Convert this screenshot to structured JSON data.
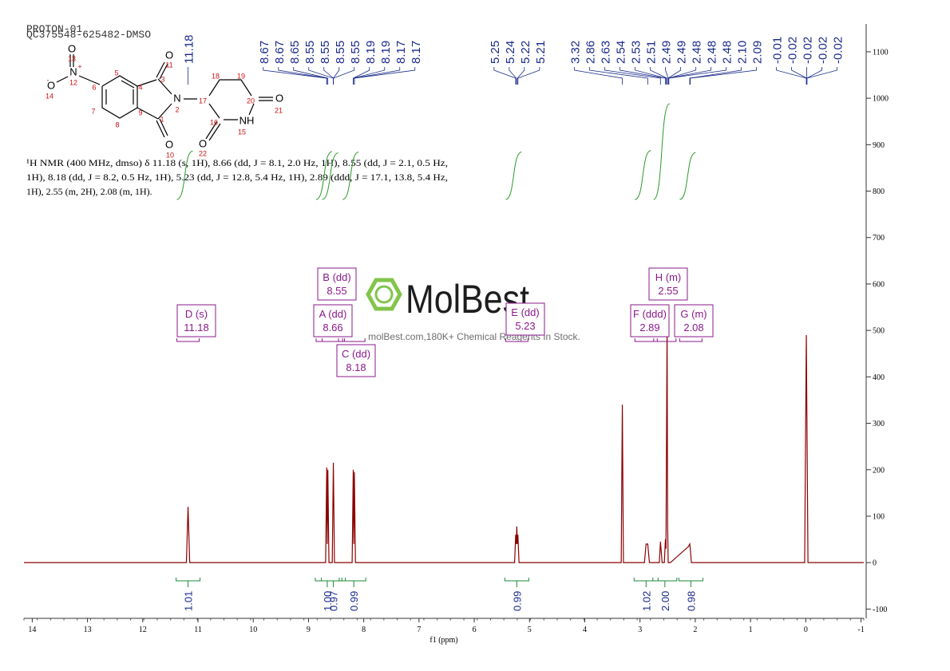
{
  "chart_data": {
    "type": "line",
    "title": "PROTON-01",
    "subtitle": "QC375548-625482-DMSO",
    "xlabel": "f1 (ppm)",
    "description": [
      "¹H NMR (400 MHz, dmso) δ 11.18 (s, 1H), 8.66 (dd, J = 8.1, 2.0 Hz, 1H), 8.55 (dd, J = 2.1, 0.5 Hz,",
      "1H), 8.18 (dd, J = 8.2, 0.5 Hz, 1H), 5.23 (dd, J = 12.8, 5.4 Hz, 1H), 2.89 (ddd, J = 17.1, 13.8, 5.4 Hz,",
      "1H), 2.55 (m, 2H), 2.08 (m, 1H)."
    ],
    "watermark": "MolBest",
    "watermark_text": "molBest.com,180K+ Chemical Reagents In Stock.",
    "structure_labels": [
      "O",
      "13",
      "N",
      "+",
      "12",
      "O",
      "-",
      "14",
      "6",
      "5",
      "4",
      "3",
      "O",
      "11",
      "N",
      "2",
      "17",
      "18",
      "19",
      "20",
      "O",
      "21",
      "16",
      "NH",
      "15",
      "O",
      "22",
      "9",
      "1",
      "O",
      "10",
      "7",
      "8"
    ],
    "xlim": [
      14.15,
      -1.05
    ],
    "xticks": [
      14,
      13,
      12,
      11,
      10,
      9,
      8,
      7,
      6,
      5,
      4,
      3,
      2,
      1,
      0,
      -1
    ],
    "ylim": [
      -120,
      1160
    ],
    "yticks": [
      -100,
      0,
      100,
      200,
      300,
      400,
      500,
      600,
      700,
      800,
      900,
      1000,
      1100
    ],
    "peak_labels": [
      11.18,
      8.67,
      8.67,
      8.65,
      8.55,
      8.55,
      8.55,
      8.55,
      8.19,
      8.19,
      8.17,
      8.17,
      5.25,
      5.24,
      5.22,
      5.21,
      3.32,
      2.86,
      2.63,
      2.54,
      2.53,
      2.51,
      2.49,
      2.49,
      2.48,
      2.48,
      2.48,
      {
        "value": 2.1,
        "label": "2.10"
      },
      2.09,
      -0.01,
      -0.02,
      -0.02,
      -0.02,
      -0.02
    ],
    "multiplets": [
      {
        "name": "D (s)",
        "shift": 11.18,
        "integral": 1.01
      },
      {
        "name": "A (dd)",
        "shift": 8.66,
        "integral": 1.0,
        "integral_label": "1.00"
      },
      {
        "name": "B (dd)",
        "shift": 8.55,
        "integral": 0.97
      },
      {
        "name": "C (dd)",
        "shift": 8.18,
        "integral": 0.99
      },
      {
        "name": "E (dd)",
        "shift": 5.23,
        "integral": 0.99
      },
      {
        "name": "F (ddd)",
        "shift": 2.89,
        "integral": 1.02
      },
      {
        "name": "H (m)",
        "shift": 2.55,
        "integral": 2.0,
        "integral_label": "2.00"
      },
      {
        "name": "G (m)",
        "shift": 2.08,
        "integral": 0.98
      }
    ],
    "series": [
      {
        "name": "spectrum",
        "color": "#8b0000",
        "x": [
          14.15,
          11.21,
          11.18,
          11.15,
          8.69,
          8.67,
          8.66,
          8.65,
          8.63,
          8.57,
          8.55,
          8.53,
          8.21,
          8.19,
          8.18,
          8.17,
          8.15,
          5.27,
          5.25,
          5.24,
          5.23,
          5.22,
          5.21,
          5.19,
          3.34,
          3.32,
          3.3,
          2.92,
          2.89,
          2.86,
          2.83,
          2.65,
          2.63,
          2.6,
          2.56,
          2.54,
          2.53,
          2.51,
          2.5,
          2.49,
          2.47,
          2.45,
          2.12,
          2.1,
          2.09,
          2.07,
          2.05,
          0.02,
          -0.01,
          -0.04,
          -1.05
        ],
        "values": [
          0,
          0,
          120,
          0,
          0,
          205,
          40,
          200,
          0,
          0,
          215,
          0,
          0,
          200,
          40,
          195,
          0,
          0,
          60,
          40,
          78,
          40,
          60,
          0,
          0,
          340,
          0,
          0,
          40,
          40,
          0,
          0,
          45,
          0,
          0,
          50,
          30,
          505,
          80,
          0,
          0,
          0,
          35,
          40,
          30,
          0,
          0,
          0,
          490,
          0,
          0
        ]
      }
    ]
  }
}
